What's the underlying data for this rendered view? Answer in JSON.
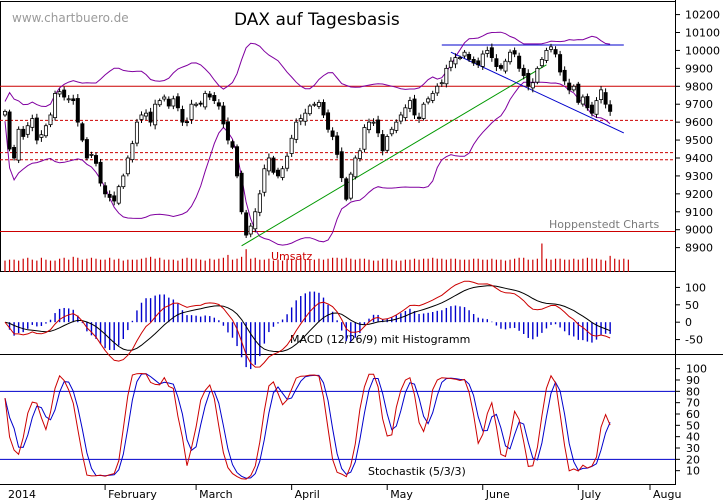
{
  "chart_data": [
    {
      "panel": "price",
      "type": "candlestick",
      "title": "DAX auf Tagesbasis",
      "watermark": "www.chartbuero.de",
      "source_label": "Hoppenstedt Charts",
      "ylim": [
        8870,
        10220
      ],
      "y_ticks": [
        8900,
        9000,
        9100,
        9200,
        9300,
        9400,
        9500,
        9600,
        9700,
        9800,
        9900,
        10000,
        10100,
        10200
      ],
      "close": [
        9660,
        9450,
        9400,
        9560,
        9520,
        9580,
        9620,
        9500,
        9530,
        9580,
        9640,
        9760,
        9770,
        9740,
        9730,
        9720,
        9600,
        9500,
        9400,
        9420,
        9370,
        9260,
        9200,
        9180,
        9160,
        9240,
        9300,
        9400,
        9480,
        9600,
        9640,
        9650,
        9600,
        9700,
        9720,
        9740,
        9690,
        9730,
        9680,
        9600,
        9600,
        9700,
        9700,
        9700,
        9760,
        9740,
        9720,
        9690,
        9590,
        9500,
        9460,
        9300,
        9100,
        8970,
        9020,
        9100,
        9200,
        9340,
        9400,
        9320,
        9300,
        9340,
        9410,
        9510,
        9600,
        9620,
        9650,
        9690,
        9700,
        9710,
        9640,
        9560,
        9520,
        9420,
        9290,
        9170,
        9310,
        9400,
        9440,
        9570,
        9600,
        9600,
        9540,
        9440,
        9520,
        9560,
        9600,
        9640,
        9680,
        9720,
        9640,
        9620,
        9700,
        9730,
        9760,
        9800,
        9820,
        9900,
        9940,
        9960,
        9960,
        9990,
        9950,
        9930,
        9920,
        9980,
        10000,
        9960,
        9910,
        9900,
        9940,
        9990,
        9980,
        9900,
        9860,
        9800,
        9820,
        9900,
        9950,
        10000,
        10020,
        9980,
        9880,
        9830,
        9780,
        9800,
        9710,
        9740,
        9680,
        9650,
        9720,
        9780,
        9700,
        9660
      ],
      "upper_band_level": 10030,
      "horizontal_lines": [
        10030,
        9800,
        9610,
        9430,
        9390,
        8990
      ],
      "support_trendline": {
        "from_close_index": 52,
        "from_value": 8910,
        "to_close_index": 119,
        "to_value": 9920
      },
      "resistance_trendline": {
        "from_close_index": 98,
        "from_value": 9990,
        "to_close_index": 136,
        "to_value": 9540
      }
    },
    {
      "panel": "volume",
      "type": "bar",
      "label": "Umsatz",
      "values": [
        12,
        13,
        13,
        12,
        14,
        15,
        13,
        12,
        15,
        13,
        12,
        12,
        14,
        15,
        13,
        16,
        15,
        13,
        14,
        15,
        14,
        13,
        13,
        15,
        13,
        14,
        12,
        13,
        13,
        13,
        14,
        15,
        16,
        14,
        15,
        13,
        13,
        13,
        12,
        14,
        15,
        14,
        14,
        13,
        12,
        14,
        13,
        14,
        15,
        18,
        13,
        14,
        16,
        24,
        14,
        15,
        13,
        13,
        14,
        12,
        13,
        12,
        14,
        14,
        13,
        15,
        13,
        13,
        13,
        14,
        13,
        14,
        15,
        15,
        14,
        15,
        14,
        13,
        14,
        14,
        13,
        12,
        12,
        14,
        14,
        13,
        12,
        12,
        13,
        13,
        14,
        13,
        14,
        14,
        15,
        14,
        14,
        13,
        14,
        14,
        13,
        13,
        13,
        14,
        14,
        13,
        13,
        14,
        13,
        13,
        12,
        13,
        14,
        15,
        15,
        13,
        13,
        14,
        30,
        14,
        13,
        14,
        14,
        13,
        13,
        14,
        13,
        14,
        15,
        14,
        14,
        13,
        12,
        17,
        14,
        13,
        14,
        13
      ]
    },
    {
      "panel": "macd",
      "type": "line",
      "label": "MACD (12/26/9) mit Histogramm",
      "ylim": [
        -80,
        130
      ],
      "y_ticks": [
        -50,
        0,
        50,
        100
      ],
      "series": [
        {
          "name": "MACD",
          "color": "#cc0000"
        },
        {
          "name": "Signal",
          "color": "#000000"
        },
        {
          "name": "Histogramm",
          "color": "#0000cc"
        }
      ]
    },
    {
      "panel": "stochastic",
      "type": "line",
      "label": "Stochastik (5/3/3)",
      "ylim": [
        0,
        105
      ],
      "y_ticks": [
        10,
        20,
        30,
        40,
        50,
        60,
        70,
        80,
        90,
        100
      ],
      "horizontal_lines": [
        20,
        80
      ],
      "series": [
        {
          "name": "%K",
          "color": "#cc0000"
        },
        {
          "name": "%D",
          "color": "#0000cc"
        }
      ]
    }
  ],
  "x_axis": {
    "months": [
      "2014",
      "February",
      "March",
      "April",
      "May",
      "June",
      "July",
      "Augu"
    ]
  },
  "colors": {
    "background": "#ffffff",
    "candles": "#000000",
    "bollinger": "#8000a0",
    "horizontal_solid": "#cc0000",
    "horizontal_dashed": "#cc0000",
    "support_trend": "#009900",
    "resistance_trend": "#0000cc",
    "upper_line": "#0000cc",
    "volume": "#cc0000",
    "macd": "#cc0000",
    "signal": "#000000",
    "histogram": "#0000cc",
    "stoch_k": "#cc0000",
    "stoch_d": "#0000cc",
    "stoch_levels": "#0000cc"
  }
}
